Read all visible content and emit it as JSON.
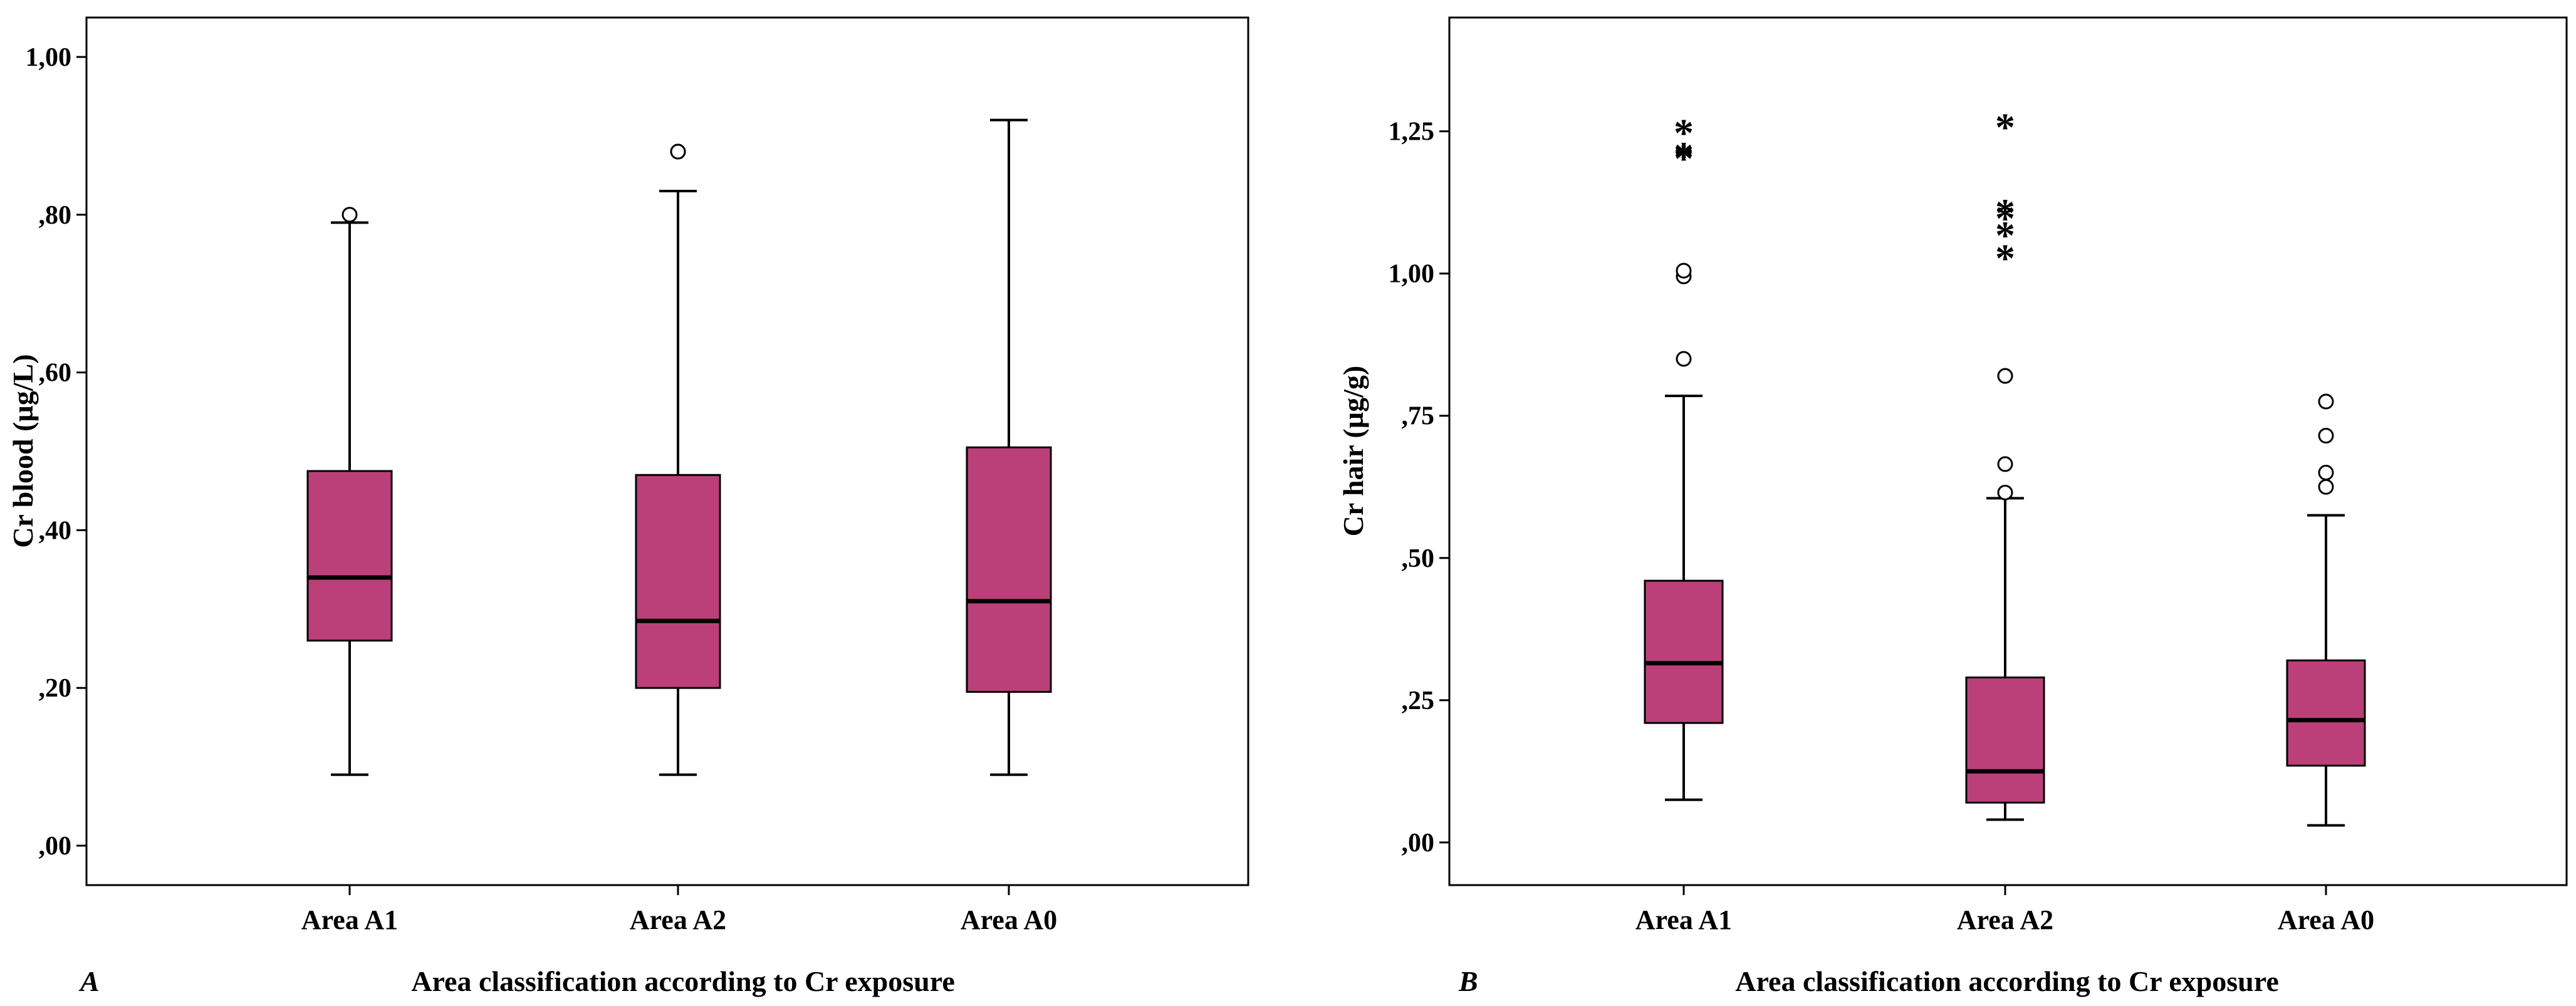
{
  "figure": {
    "box_color": "#bb4079",
    "outline_color": "#000000",
    "background": "#ffffff"
  },
  "chart_data": [
    {
      "type": "boxplot",
      "panel_label": "A",
      "xlabel": "Area classification according to Cr exposure",
      "ylabel": "Cr blood (µg/L)",
      "ylim": [
        -0.05,
        1.05
      ],
      "yticks": [
        0.0,
        0.2,
        0.4,
        0.6,
        0.8,
        1.0
      ],
      "ytick_labels": [
        ",00",
        ",20",
        ",40",
        ",60",
        ",80",
        "1,00"
      ],
      "grid": false,
      "categories": [
        "Area A1",
        "Area A2",
        "Area A0"
      ],
      "boxes": [
        {
          "min": 0.09,
          "q1": 0.26,
          "median": 0.34,
          "q3": 0.475,
          "max": 0.79,
          "outliers": [
            0.8
          ],
          "extremes": []
        },
        {
          "min": 0.09,
          "q1": 0.2,
          "median": 0.285,
          "q3": 0.47,
          "max": 0.83,
          "outliers": [
            0.88,
            0.88
          ],
          "extremes": []
        },
        {
          "min": 0.09,
          "q1": 0.195,
          "median": 0.31,
          "q3": 0.505,
          "max": 0.92,
          "outliers": [],
          "extremes": []
        }
      ]
    },
    {
      "type": "boxplot",
      "panel_label": "B",
      "xlabel": "Area classification according to Cr exposure",
      "ylabel": "Cr hair (µg/g)",
      "ylim": [
        -0.075,
        1.45
      ],
      "yticks": [
        0.0,
        0.25,
        0.5,
        0.75,
        1.0,
        1.25
      ],
      "ytick_labels": [
        ",00",
        ",25",
        ",50",
        ",75",
        "1,00",
        "1,25"
      ],
      "grid": false,
      "categories": [
        "Area A1",
        "Area A2",
        "Area A0"
      ],
      "boxes": [
        {
          "min": 0.075,
          "q1": 0.21,
          "median": 0.315,
          "q3": 0.46,
          "max": 0.785,
          "outliers": [
            0.85,
            0.995,
            1.005
          ],
          "extremes": [
            1.205,
            1.21,
            1.25
          ]
        },
        {
          "min": 0.04,
          "q1": 0.07,
          "median": 0.125,
          "q3": 0.29,
          "max": 0.605,
          "outliers": [
            0.615,
            0.665,
            0.82,
            0.82
          ],
          "extremes": [
            1.03,
            1.07,
            1.1,
            1.11,
            1.26
          ]
        },
        {
          "min": 0.03,
          "q1": 0.135,
          "median": 0.215,
          "q3": 0.32,
          "max": 0.575,
          "outliers": [
            0.625,
            0.65,
            0.715,
            0.775
          ],
          "extremes": []
        }
      ]
    }
  ]
}
